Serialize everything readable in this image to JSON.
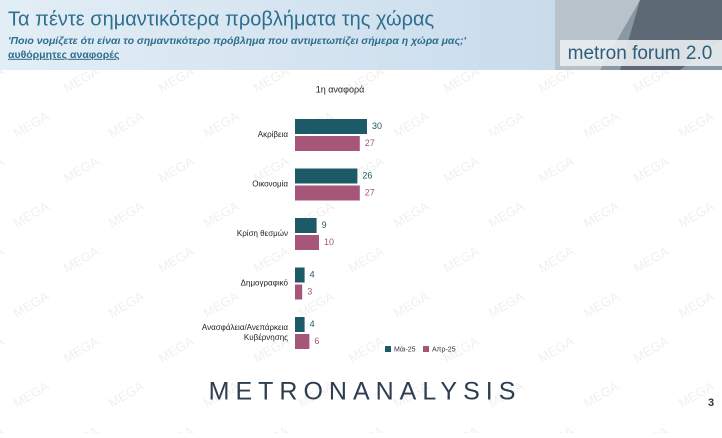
{
  "header": {
    "title": "Τα πέντε σημαντικότερα προβλήματα της χώρας",
    "question": "'Ποιο νομίζετε ότι είναι το σημαντικότερο πρόβλημα που αντιμετωπίζει σήμερα η χώρα μας;'",
    "note": "αυθόρμητες αναφορές",
    "logo": "metron forum 2.0"
  },
  "watermark": "MEGA",
  "chart_data": {
    "type": "hbar",
    "title": "1η αναφορά",
    "categories": [
      "Ακρίβεια",
      "Οικονομία",
      "Κρίση θεσμών",
      "Δημογραφικό",
      "Ανασφάλεια/Ανεπάρκεια Κυβέρνησης"
    ],
    "series": [
      {
        "name": "Μάι-25",
        "color": "#1d5a68",
        "values": [
          30,
          26,
          9,
          4,
          4
        ]
      },
      {
        "name": "Απρ-25",
        "color": "#a65679",
        "values": [
          27,
          27,
          10,
          3,
          6
        ]
      }
    ]
  },
  "footer": {
    "brand": "METRONANALYSIS",
    "page": "3"
  }
}
